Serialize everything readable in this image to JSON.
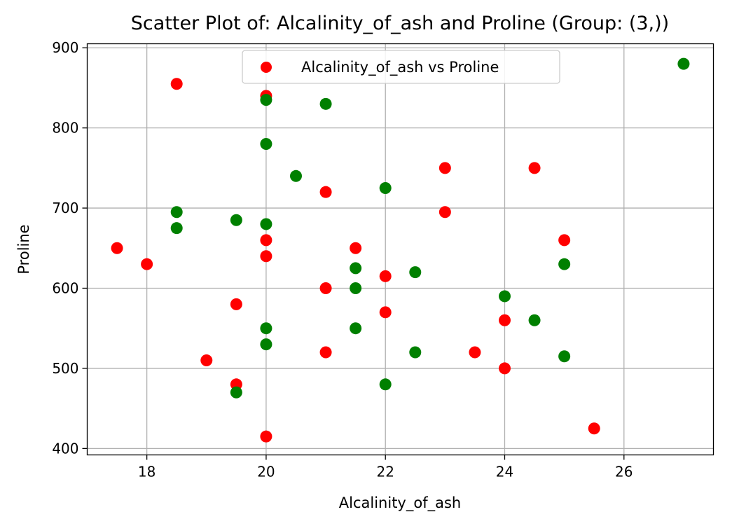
{
  "chart_data": {
    "type": "scatter",
    "title": "Scatter Plot of: Alcalinity_of_ash and Proline (Group: (3,))",
    "xlabel": "Alcalinity_of_ash",
    "ylabel": "Proline",
    "xlim": [
      17,
      27.5
    ],
    "ylim": [
      392,
      905
    ],
    "xticks": [
      18,
      20,
      22,
      24,
      26
    ],
    "yticks": [
      400,
      500,
      600,
      700,
      800,
      900
    ],
    "grid": true,
    "legend": {
      "placement": "top-center",
      "entries": [
        "Alcalinity_of_ash vs Proline"
      ]
    },
    "colors": {
      "red": "#ff0000",
      "green": "#008000"
    },
    "series": [
      {
        "name": "Alcalinity_of_ash vs Proline",
        "color": "#ff0000",
        "points": [
          [
            17.5,
            650
          ],
          [
            18,
            630
          ],
          [
            18.5,
            855
          ],
          [
            19,
            510
          ],
          [
            19.5,
            580
          ],
          [
            19.5,
            480
          ],
          [
            20,
            840
          ],
          [
            20,
            660
          ],
          [
            20,
            640
          ],
          [
            20,
            415
          ],
          [
            21,
            720
          ],
          [
            21,
            600
          ],
          [
            21,
            520
          ],
          [
            21.5,
            650
          ],
          [
            22,
            615
          ],
          [
            22,
            570
          ],
          [
            23,
            750
          ],
          [
            23,
            695
          ],
          [
            23.5,
            520
          ],
          [
            24,
            560
          ],
          [
            24,
            500
          ],
          [
            24.5,
            750
          ],
          [
            25,
            660
          ],
          [
            25.5,
            425
          ]
        ]
      },
      {
        "color": "#008000",
        "points": [
          [
            18.5,
            695
          ],
          [
            18.5,
            675
          ],
          [
            19.5,
            685
          ],
          [
            19.5,
            470
          ],
          [
            20,
            835
          ],
          [
            20,
            780
          ],
          [
            20,
            680
          ],
          [
            20,
            550
          ],
          [
            20,
            530
          ],
          [
            20.5,
            740
          ],
          [
            21,
            830
          ],
          [
            21.5,
            625
          ],
          [
            21.5,
            600
          ],
          [
            21.5,
            550
          ],
          [
            22,
            725
          ],
          [
            22,
            480
          ],
          [
            22.5,
            620
          ],
          [
            22.5,
            520
          ],
          [
            24,
            590
          ],
          [
            24.5,
            560
          ],
          [
            25,
            630
          ],
          [
            25,
            515
          ],
          [
            27,
            880
          ]
        ]
      }
    ]
  }
}
